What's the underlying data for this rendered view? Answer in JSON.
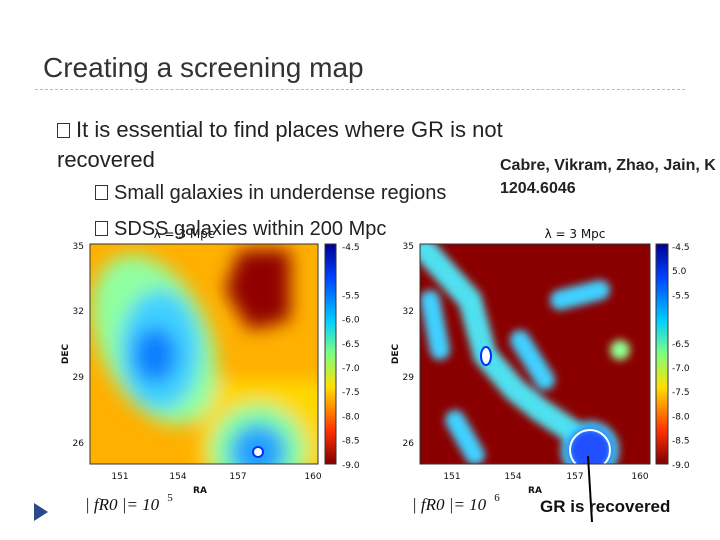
{
  "title": "Creating a screening map",
  "bullet": {
    "text": "It is essential to find places where GR is not recovered",
    "sub": [
      "Small galaxies in underdense regions",
      "SDSS galaxies within 200 Mpc"
    ]
  },
  "citation": {
    "authors": "Cabre, Vikram, Zhao, Jain, K",
    "arxiv": "1204.6046"
  },
  "maps": [
    {
      "label": "λ = 3 Mpc",
      "ylabel": "DEC",
      "xlabel": "RA",
      "yticks": [
        "35",
        "32",
        "29",
        "26"
      ],
      "xticks": [
        "151",
        "154",
        "157",
        "160"
      ],
      "colorbar_ticks": [
        "-4.5",
        "",
        "-5.5",
        "-6.0",
        "-6.5",
        "-7.0",
        "-7.5",
        "-8.0",
        "-8.5",
        "-9.0"
      ],
      "caption": {
        "base": "| fR0 |= 10",
        "exp": "5"
      }
    },
    {
      "label": "λ = 3 Mpc",
      "ylabel": "DEC",
      "xlabel": "RA",
      "yticks": [
        "35",
        "32",
        "29",
        "26"
      ],
      "xticks": [
        "151",
        "154",
        "157",
        "160"
      ],
      "colorbar_ticks": [
        "-4.5",
        "5.0",
        "-5.5",
        "",
        "-6.5",
        "-7.0",
        "-7.5",
        "-8.0",
        "-8.5",
        "-9.0"
      ],
      "caption": {
        "base": "| fR0 |= 10",
        "exp": "6"
      }
    }
  ],
  "annotation": "GR is recovered"
}
